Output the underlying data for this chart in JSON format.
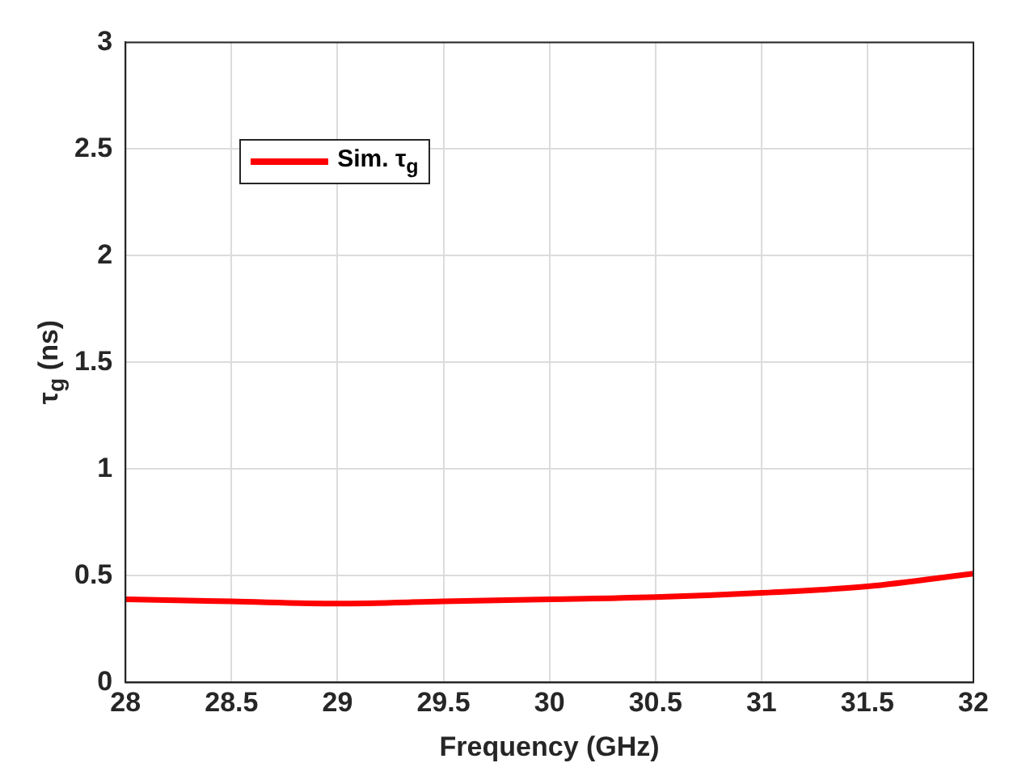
{
  "chart_data": {
    "type": "line",
    "xlabel": "Frequency (GHz)",
    "ylabel": "τ$_{g}$ (ns)",
    "x": [
      28,
      28.5,
      29,
      29.5,
      30,
      30.5,
      31,
      31.5,
      32
    ],
    "series": [
      {
        "name": "Sim. τ$_{g}$",
        "color": "#ff0000",
        "values": [
          0.39,
          0.38,
          0.37,
          0.38,
          0.39,
          0.4,
          0.42,
          0.45,
          0.51
        ]
      }
    ],
    "xlim": [
      28,
      32
    ],
    "xticks": [
      28,
      28.5,
      29,
      29.5,
      30,
      30.5,
      31,
      31.5,
      32
    ],
    "ylim": [
      0,
      3
    ],
    "yticks": [
      0,
      0.5,
      1,
      1.5,
      2,
      2.5,
      3
    ],
    "grid": true,
    "legend": "top left",
    "marker": "none",
    "line_style": "solid"
  }
}
